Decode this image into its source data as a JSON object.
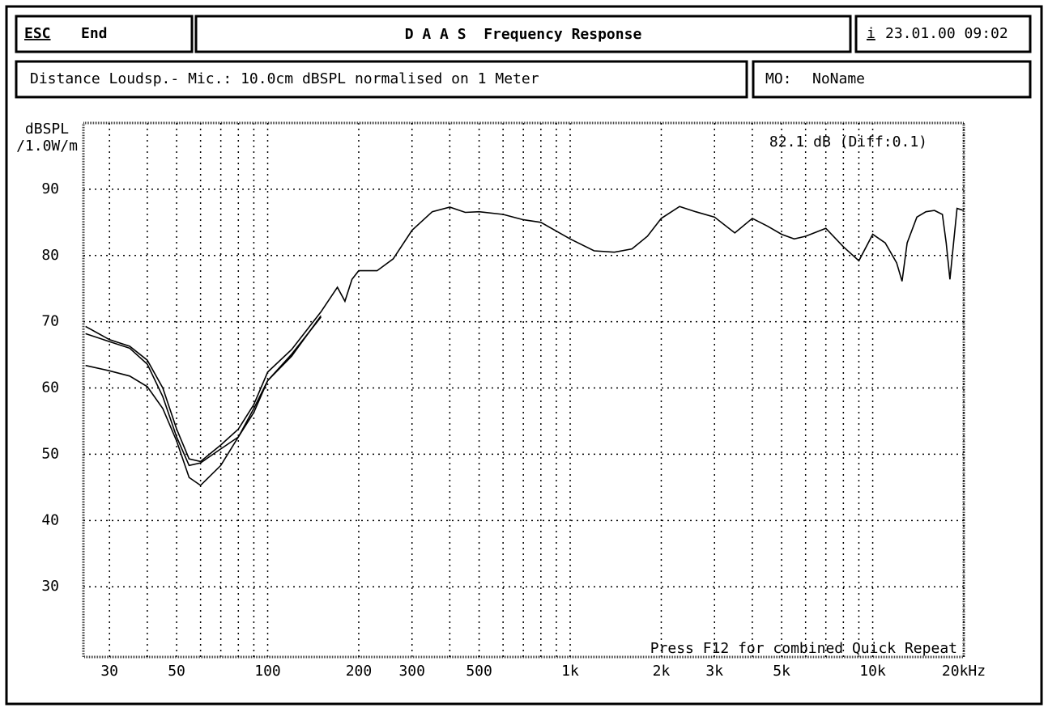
{
  "header": {
    "esc": "ESC",
    "end": "End",
    "title": "D A A S  Frequency Response",
    "info_key": "i",
    "datetime": "23.01.00 09:02"
  },
  "info": {
    "text": "Distance Loudsp.- Mic.: 10.0cm dBSPL normalised on 1 Meter",
    "model_label": "MO:",
    "model": "NoName"
  },
  "chart_data": {
    "type": "line",
    "ylabel": "dBSPL",
    "yunit": "/1.0W/m",
    "annotation": "82.1 dB (Diff:0.1)",
    "footer": "Press F12 for combined Quick Repeat",
    "xscale": "log",
    "grid": true,
    "xlim": [
      24.6,
      20000
    ],
    "ylim": [
      19.4,
      100
    ],
    "xticks": [
      30,
      50,
      100,
      200,
      300,
      500,
      {
        "value": 1000,
        "label": "1k"
      },
      {
        "value": 2000,
        "label": "2k"
      },
      {
        "value": 3000,
        "label": "3k"
      },
      {
        "value": 5000,
        "label": "5k"
      },
      {
        "value": 10000,
        "label": "10k"
      },
      {
        "value": 20000,
        "label": "20kHz"
      }
    ],
    "xgrid_minor": [
      40,
      60,
      70,
      80,
      90,
      400,
      600,
      700,
      800,
      900,
      4000,
      6000,
      7000,
      8000,
      9000
    ],
    "yticks": [
      30,
      40,
      50,
      60,
      70,
      80,
      90
    ],
    "x": [
      25,
      30,
      35,
      40,
      45,
      50,
      55,
      60,
      70,
      80,
      90,
      100,
      120,
      150,
      170,
      180,
      190,
      200,
      230,
      260,
      300,
      350,
      400,
      450,
      500,
      600,
      700,
      800,
      1000,
      1200,
      1400,
      1600,
      1800,
      2000,
      2300,
      2600,
      3000,
      3500,
      4000,
      4500,
      5000,
      5500,
      6000,
      7000,
      8000,
      9000,
      10000,
      11000,
      12000,
      12500,
      13000,
      14000,
      15000,
      16000,
      17000,
      17500,
      18000,
      18500,
      19000,
      20000
    ],
    "series": [
      {
        "color": "#000000",
        "values": [
          69.3,
          67.3,
          66.3,
          64.2,
          60,
          53.8,
          49.3,
          48.9,
          51.4,
          53.8,
          57.5,
          62.4,
          65.8,
          71.5,
          75.2,
          73.1,
          76.4,
          77.7,
          77.7,
          79.5,
          83.8,
          86.6,
          87.3,
          86.5,
          86.6,
          86.2,
          85.4,
          85,
          82.5,
          80.7,
          80.5,
          81,
          82.9,
          85.6,
          87.4,
          86.6,
          85.8,
          83.4,
          85.6,
          84.4,
          83.2,
          82.5,
          82.9,
          84.1,
          81.3,
          79.2,
          83.2,
          81.9,
          78.9,
          76.1,
          81.9,
          85.8,
          86.6,
          86.8,
          86.2,
          81.9,
          76.4,
          81.9,
          87.1,
          86.8
        ]
      },
      {
        "color": "#000000",
        "values": [
          68.2,
          67,
          66,
          63.6,
          58.7,
          52.6,
          48.3,
          48.7,
          50.8,
          52.6,
          56.9,
          61.1,
          64.8,
          70.9,
          null,
          null,
          null,
          null,
          null,
          null,
          null,
          null,
          null,
          null,
          null,
          null,
          null,
          null,
          null,
          null,
          null,
          null,
          null,
          null,
          null,
          null,
          null,
          null,
          null,
          null,
          null,
          null,
          null,
          null,
          null,
          null,
          null,
          null,
          null,
          null,
          null,
          null,
          null,
          null,
          null,
          null,
          null,
          null,
          null,
          null
        ]
      },
      {
        "color": "#000000",
        "values": [
          63.4,
          62.6,
          61.8,
          60.2,
          56.9,
          52,
          46.5,
          45.3,
          48.3,
          52.6,
          56.3,
          61.1,
          65.1,
          70.7,
          null,
          null,
          null,
          null,
          null,
          null,
          null,
          null,
          null,
          null,
          null,
          null,
          null,
          null,
          null,
          null,
          null,
          null,
          null,
          null,
          null,
          null,
          null,
          null,
          null,
          null,
          null,
          null,
          null,
          null,
          null,
          null,
          null,
          null,
          null,
          null,
          null,
          null,
          null,
          null,
          null,
          null,
          null,
          null,
          null,
          null
        ]
      }
    ]
  }
}
